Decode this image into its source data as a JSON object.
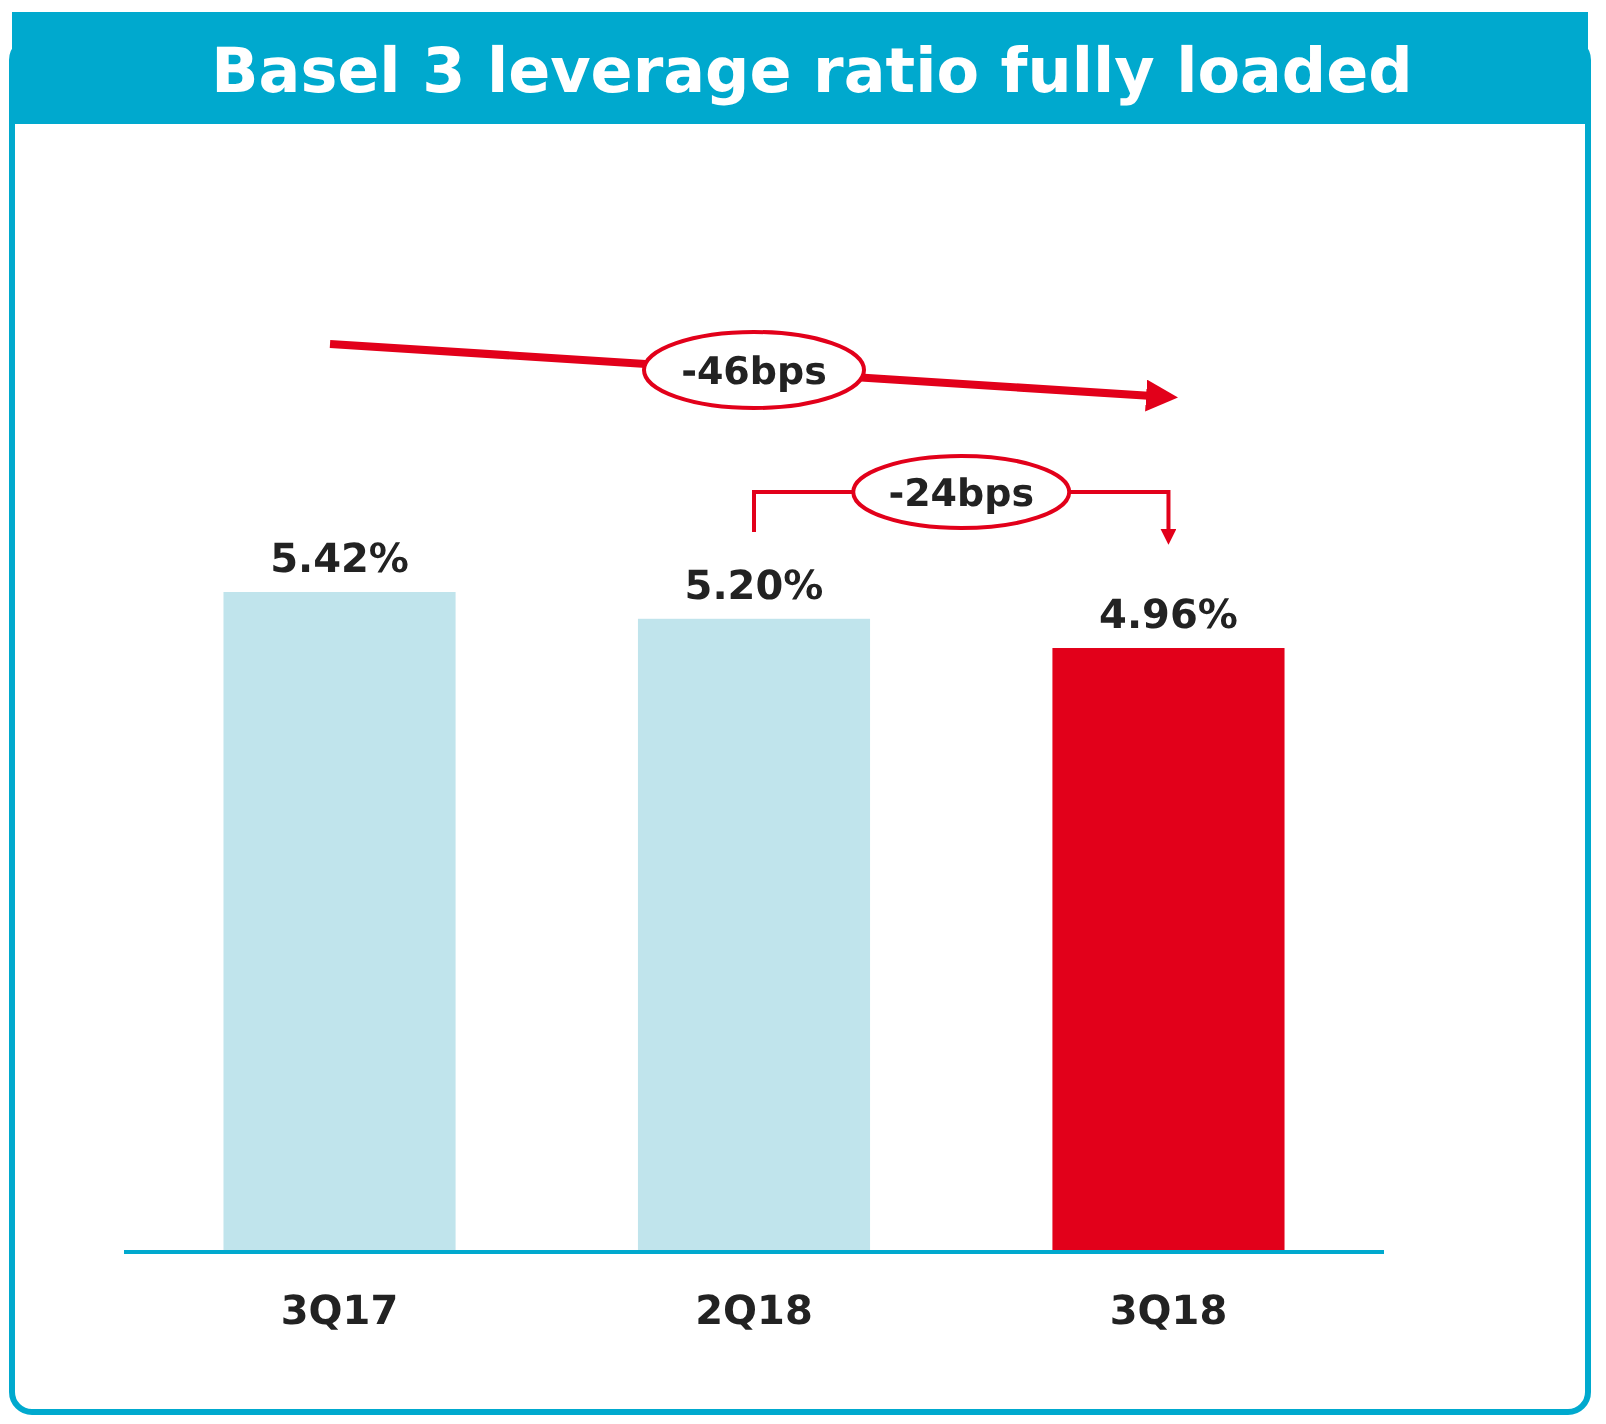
{
  "chart_data": {
    "type": "bar",
    "title": "Basel 3 leverage ratio fully loaded",
    "categories": [
      "3Q17",
      "2Q18",
      "3Q18"
    ],
    "values": [
      5.42,
      5.2,
      4.96
    ],
    "value_labels": [
      "5.42%",
      "5.20%",
      "4.96%"
    ],
    "colors": [
      "#c0e4ec",
      "#c0e4ec",
      "#e2001a"
    ],
    "relative": false,
    "annotations": [
      "-46bps",
      "-24bps"
    ]
  }
}
